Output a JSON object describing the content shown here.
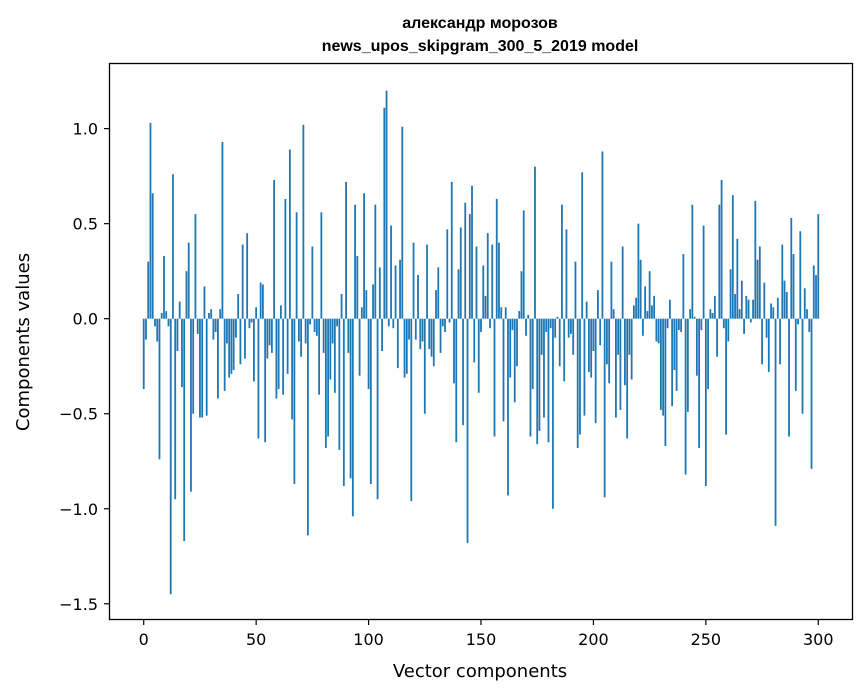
{
  "chart_data": {
    "type": "bar",
    "title_line1": "александр морозов",
    "title_line2": "news_upos_skipgram_300_5_2019 model",
    "xlabel": "Vector components",
    "ylabel": "Components values",
    "xlim": [
      -15,
      315
    ],
    "ylim": [
      -1.58,
      1.34
    ],
    "xticks": [
      0,
      50,
      100,
      150,
      200,
      250,
      300
    ],
    "yticks": [
      -1.5,
      -1.0,
      -0.5,
      0.0,
      0.5,
      1.0
    ],
    "ytick_labels": [
      "−1.5",
      "−1.0",
      "−0.5",
      "0.0",
      "0.5",
      "1.0"
    ],
    "bar_color": "#1f77b4",
    "values": [
      -0.37,
      -0.11,
      0.3,
      1.03,
      0.66,
      -0.04,
      -0.12,
      -0.74,
      0.03,
      0.33,
      0.04,
      -0.04,
      -1.45,
      0.76,
      -0.95,
      -0.17,
      0.09,
      -0.36,
      -1.17,
      0.25,
      0.4,
      -0.91,
      -0.5,
      0.55,
      -0.08,
      -0.52,
      -0.52,
      0.17,
      -0.51,
      0.03,
      0.05,
      -0.11,
      -0.07,
      -0.42,
      0.05,
      0.93,
      -0.38,
      -0.13,
      -0.31,
      -0.29,
      -0.27,
      -0.1,
      0.13,
      -0.24,
      0.39,
      -0.21,
      0.45,
      -0.05,
      -0.02,
      -0.33,
      0.06,
      -0.63,
      0.19,
      0.18,
      -0.65,
      -0.21,
      -0.14,
      -0.18,
      0.73,
      -0.42,
      -0.37,
      0.07,
      -0.4,
      0.63,
      -0.29,
      0.89,
      -0.53,
      -0.87,
      0.56,
      -0.12,
      -0.2,
      1.02,
      -0.13,
      -1.14,
      -0.03,
      0.38,
      -0.07,
      -0.09,
      -0.4,
      0.56,
      -0.18,
      -0.68,
      -0.62,
      -0.32,
      -0.13,
      -0.39,
      -0.04,
      -0.69,
      0.13,
      -0.88,
      0.72,
      -0.18,
      -0.84,
      -1.04,
      0.6,
      0.33,
      -0.3,
      0.06,
      0.66,
      0.15,
      -0.37,
      -0.87,
      0.18,
      0.6,
      -0.95,
      0.27,
      -0.17,
      1.11,
      1.2,
      -0.04,
      0.49,
      -0.05,
      0.28,
      -0.26,
      0.31,
      1.01,
      -0.31,
      -0.29,
      -0.11,
      -0.96,
      0.4,
      -0.11,
      0.23,
      -0.16,
      -0.12,
      -0.5,
      0.39,
      -0.16,
      -0.2,
      -0.25,
      0.15,
      0.27,
      -0.18,
      -0.04,
      -0.07,
      0.47,
      -0.02,
      0.72,
      -0.34,
      -0.65,
      0.26,
      0.48,
      -0.56,
      0.61,
      -1.18,
      0.55,
      0.7,
      -0.23,
      0.38,
      -0.39,
      -0.07,
      0.28,
      0.12,
      0.45,
      -0.05,
      0.39,
      -0.62,
      0.63,
      0.4,
      0.06,
      -0.54,
      0.06,
      -0.93,
      -0.31,
      -0.06,
      -0.44,
      -0.25,
      0.04,
      0.25,
      0.57,
      -0.09,
      0.02,
      -0.62,
      -0.37,
      0.8,
      -0.66,
      -0.59,
      -0.19,
      -0.52,
      -0.07,
      -0.65,
      -0.05,
      -1.0,
      -0.1,
      0.01,
      -0.25,
      0.6,
      -0.33,
      0.47,
      -0.1,
      -0.08,
      -0.19,
      0.3,
      -0.68,
      -0.61,
      0.77,
      -0.51,
      0.09,
      -0.28,
      -0.31,
      -0.17,
      -0.55,
      0.15,
      -0.14,
      0.88,
      -0.94,
      -0.24,
      -0.34,
      0.3,
      0.05,
      -0.52,
      -0.19,
      -0.48,
      0.38,
      -0.35,
      -0.63,
      -0.19,
      -0.32,
      0.07,
      0.11,
      0.5,
      0.31,
      -0.09,
      0.17,
      0.04,
      0.25,
      0.07,
      0.12,
      -0.12,
      -0.13,
      -0.48,
      -0.51,
      -0.67,
      -0.05,
      0.1,
      -0.46,
      -0.27,
      -0.38,
      -0.06,
      -0.07,
      0.34,
      -0.82,
      -0.49,
      0.05,
      0.6,
      0.01,
      -0.3,
      -0.68,
      -0.06,
      0.49,
      -0.88,
      -0.37,
      0.05,
      0.03,
      0.12,
      -0.2,
      0.6,
      0.73,
      -0.05,
      -0.61,
      -0.12,
      0.26,
      0.65,
      0.13,
      0.42,
      0.05,
      0.2,
      -0.08,
      0.12,
      0.1,
      -0.02,
      0.1,
      0.62,
      0.31,
      0.38,
      -0.24,
      0.19,
      -0.1,
      -0.28,
      0.08,
      0.06,
      -1.09,
      0.11,
      -0.24,
      0.39,
      0.2,
      0.14,
      -0.62,
      0.53,
      0.34,
      -0.38,
      -0.03,
      0.46,
      -0.5,
      0.16,
      0.05,
      -0.07,
      -0.79,
      0.28,
      0.23,
      0.55
    ]
  }
}
